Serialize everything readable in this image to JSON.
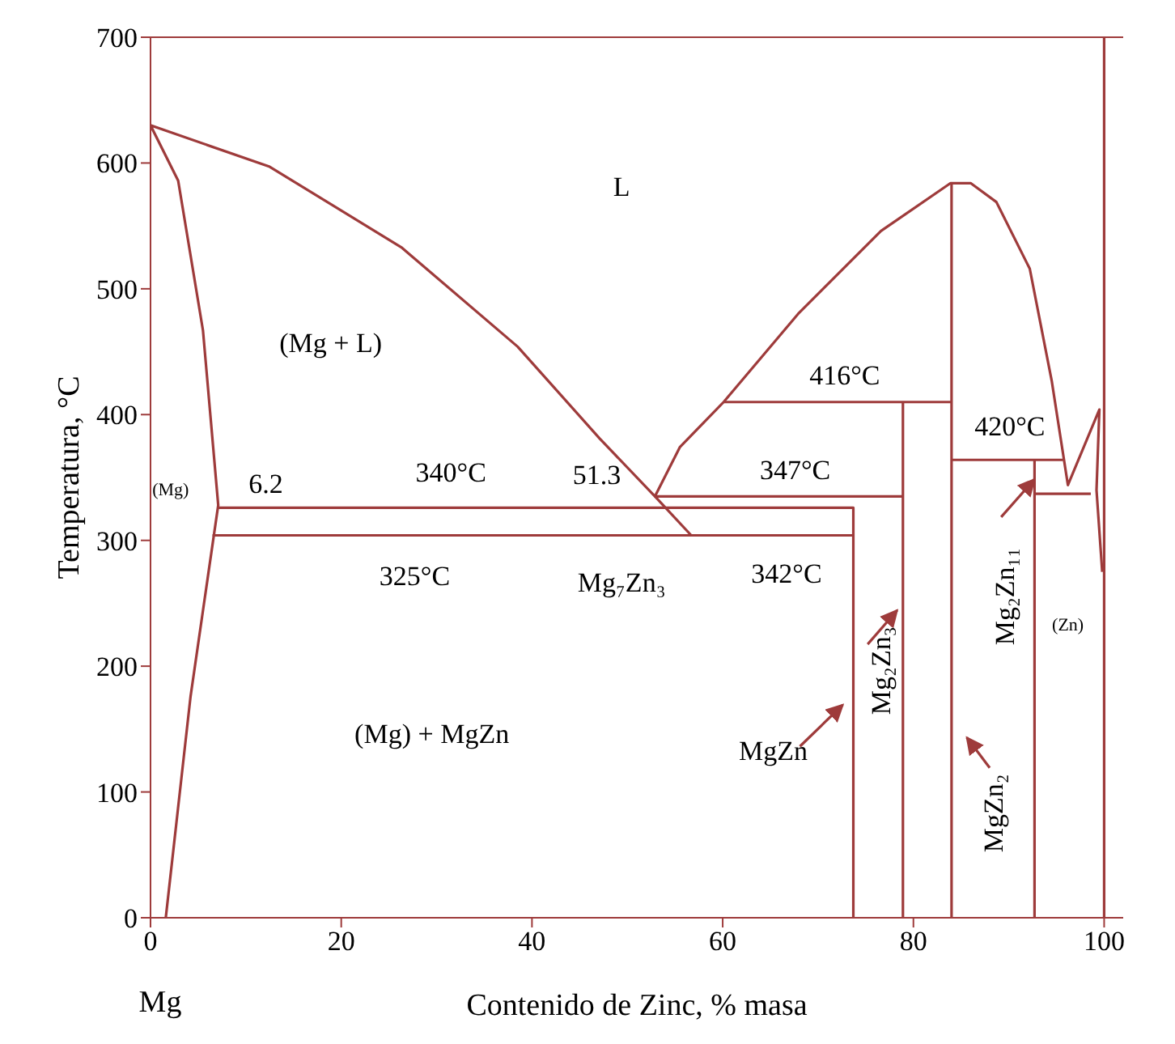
{
  "chart_data": {
    "type": "line",
    "xlabel": "Contenido de Zinc, % masa",
    "ylabel": "Temperatura, °C",
    "xlim": [
      0,
      102
    ],
    "ylim": [
      0,
      700
    ],
    "xticks": [
      0,
      20,
      40,
      60,
      80,
      100
    ],
    "yticks": [
      0,
      100,
      200,
      300,
      400,
      500,
      600,
      700
    ],
    "series": [
      {
        "color": "#9e3b3b",
        "x": [
          1.6,
          4.2,
          7.1,
          5.5,
          2.9,
          0,
          12.5,
          26.3,
          38.5,
          47.1,
          52.9,
          55.5,
          60.1,
          67.9,
          76.6,
          83.9,
          86,
          88.7,
          92.2,
          94.5,
          96.2,
          99.5,
          99.2,
          99.8
        ],
        "values": [
          0,
          176,
          328,
          467,
          586,
          630,
          597,
          533,
          454,
          381,
          335,
          374,
          410,
          480,
          546,
          584,
          584,
          569,
          516,
          427,
          344,
          404,
          340,
          275
        ]
      },
      {
        "color": "#9e3b3b",
        "x": [
          7.1,
          73.7,
          73.7
        ],
        "values": [
          326,
          326,
          0
        ]
      },
      {
        "color": "#9e3b3b",
        "x": [
          6.5,
          73.7
        ],
        "values": [
          304,
          304
        ]
      },
      {
        "color": "#9e3b3b",
        "x": [
          52.9,
          78.9
        ],
        "values": [
          335,
          335
        ]
      },
      {
        "color": "#9e3b3b",
        "x": [
          52.9,
          56.7
        ],
        "values": [
          335,
          304
        ]
      },
      {
        "color": "#9e3b3b",
        "x": [
          60.1,
          84
        ],
        "values": [
          410,
          410
        ]
      },
      {
        "color": "#9e3b3b",
        "x": [
          78.9,
          78.9
        ],
        "values": [
          410,
          0
        ]
      },
      {
        "color": "#9e3b3b",
        "x": [
          84,
          84
        ],
        "values": [
          584,
          0
        ]
      },
      {
        "color": "#9e3b3b",
        "x": [
          84,
          95.7
        ],
        "values": [
          364,
          364
        ]
      },
      {
        "color": "#9e3b3b",
        "x": [
          92.7,
          92.7
        ],
        "values": [
          364,
          0
        ]
      },
      {
        "color": "#9e3b3b",
        "x": [
          92.7,
          98.6
        ],
        "values": [
          337,
          337
        ]
      },
      {
        "color": "#9e3b3b",
        "x": [
          100,
          100
        ],
        "values": [
          0,
          700
        ]
      }
    ],
    "annotations": [
      "L",
      "(Mg + L)",
      "(Mg)",
      "6.2",
      "340°C",
      "51.3",
      "325°C",
      "Mg₇Zn₃",
      "(Mg) + MgZn",
      "416°C",
      "347°C",
      "342°C",
      "420°C",
      "MgZn",
      "Mg₂Zn₃",
      "MgZn₂",
      "Mg₂Zn₁₁",
      "(Zn)",
      "Mg"
    ]
  }
}
